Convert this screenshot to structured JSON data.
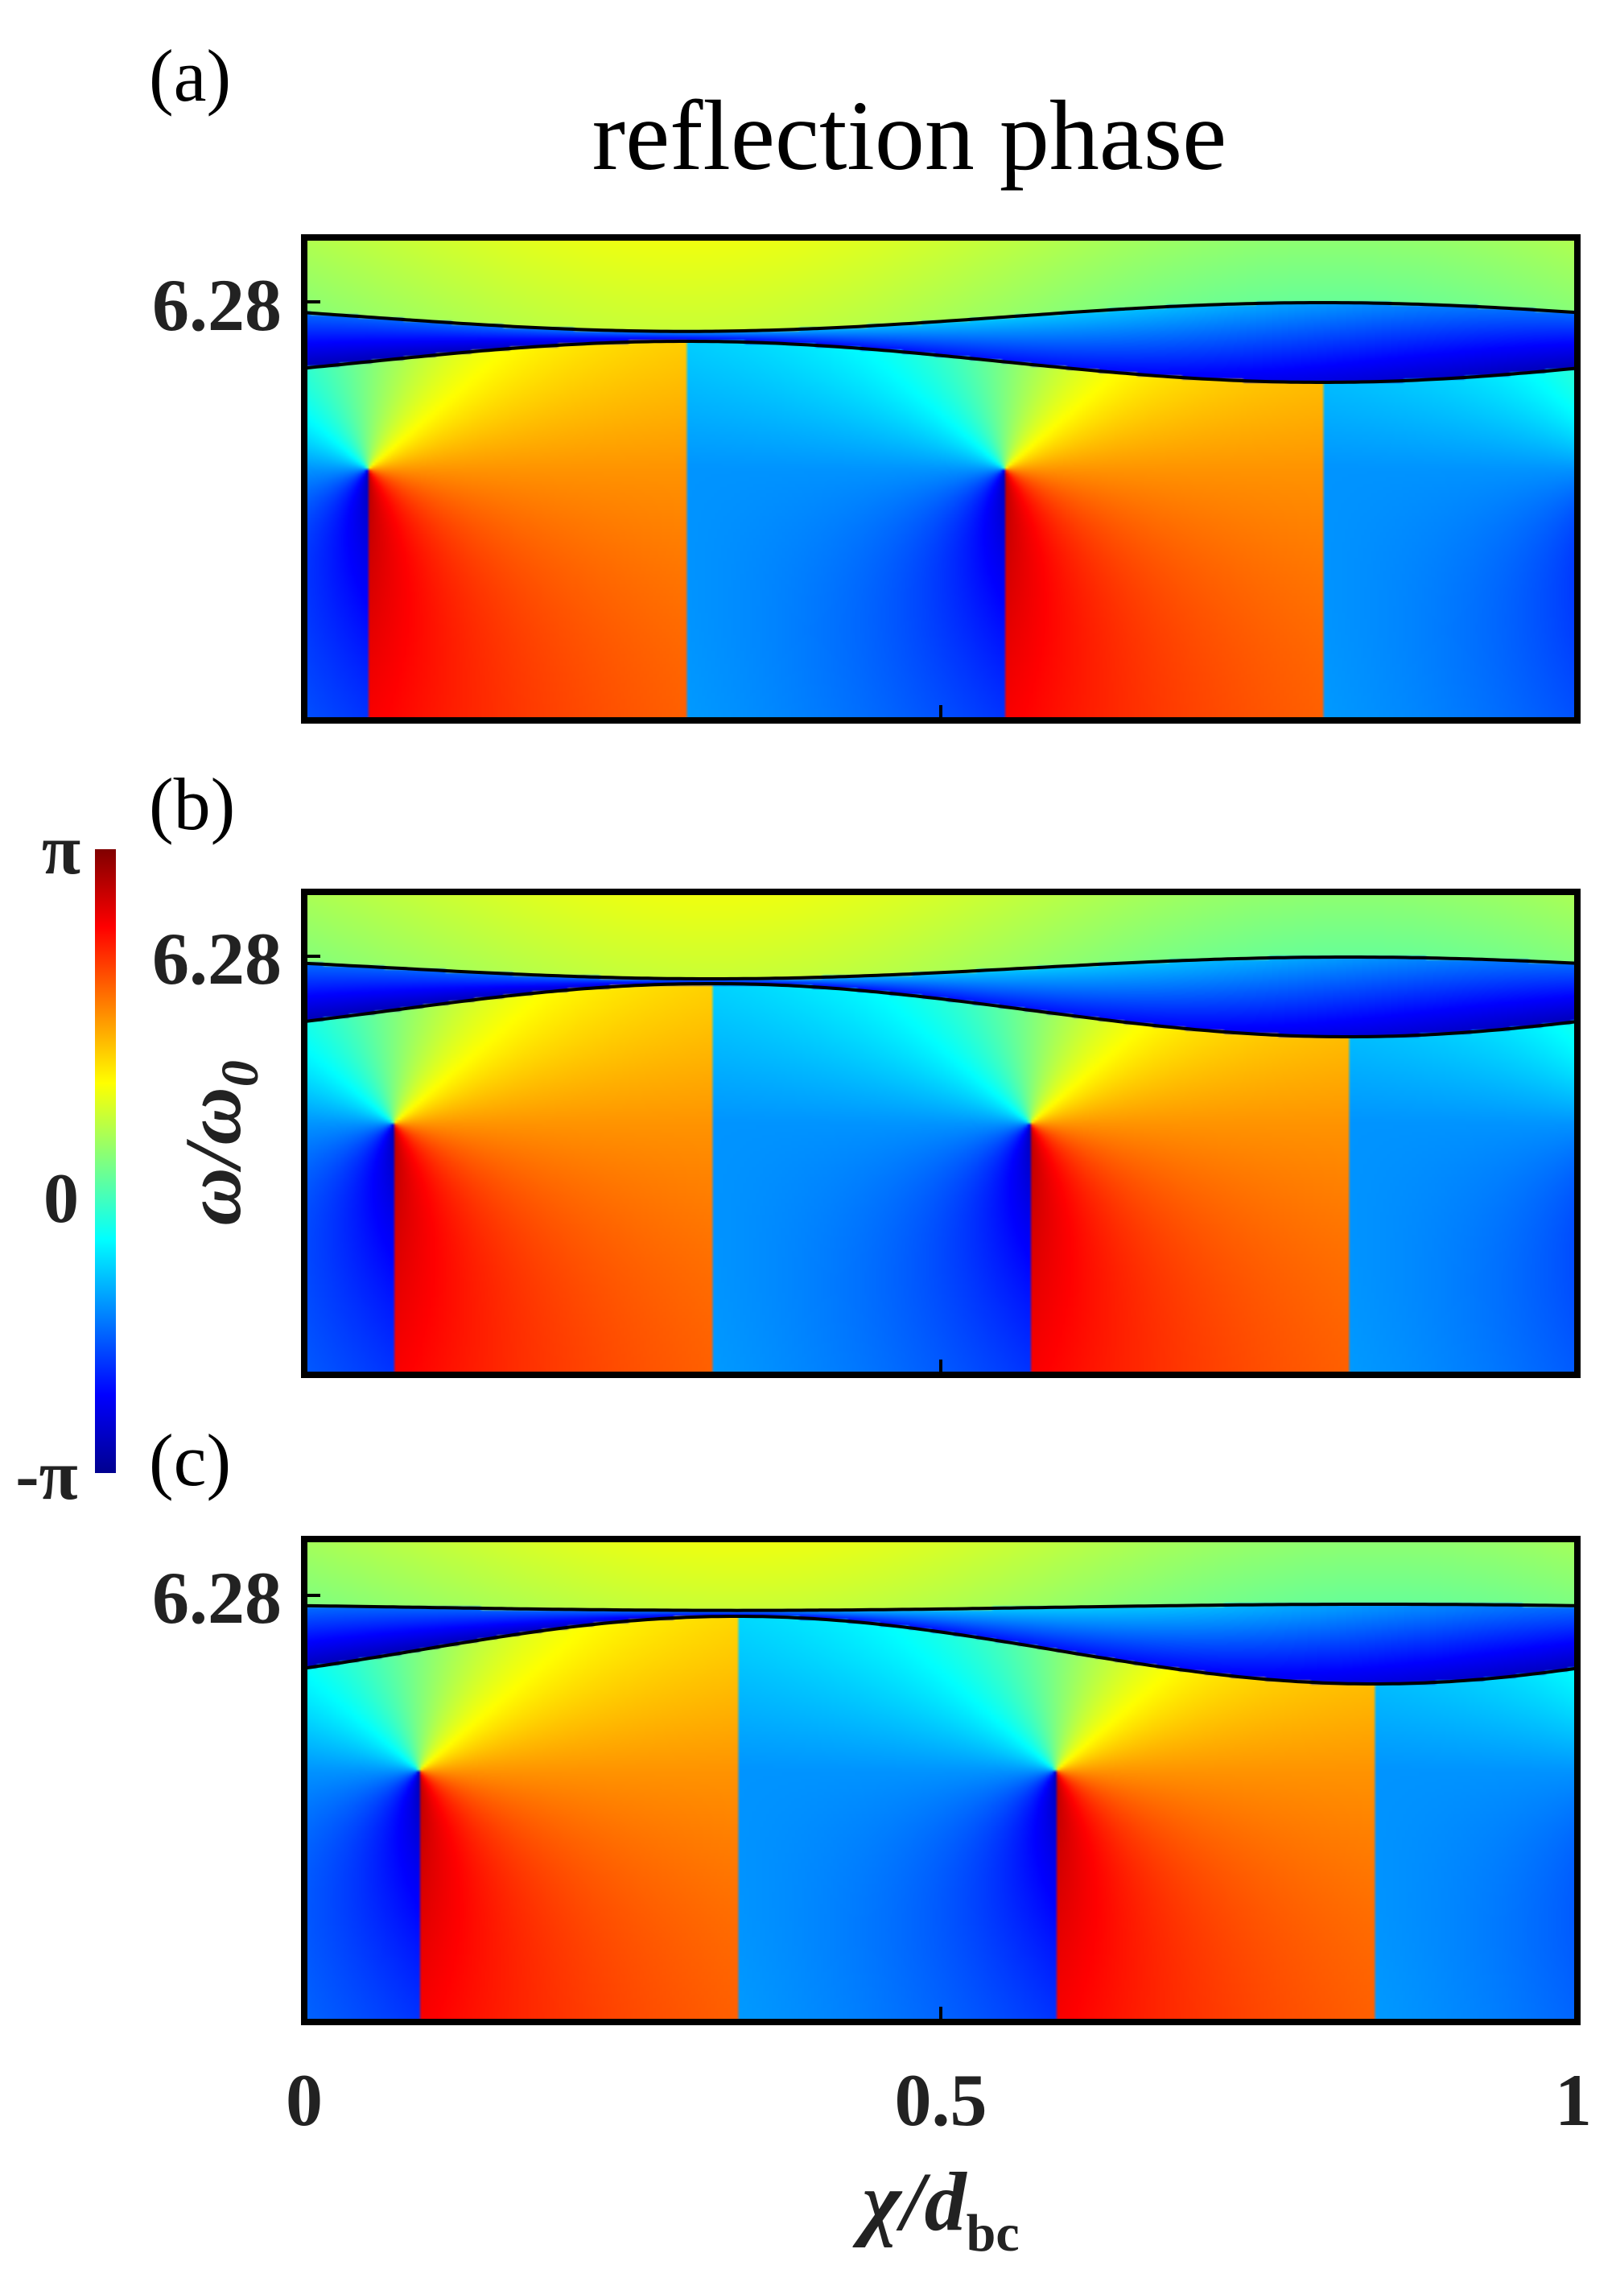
{
  "chart_data": {
    "type": "heatmap",
    "title": "reflection phase",
    "xlabel": "χ/d",
    "xlabel_sub": "bc",
    "ylabel": "ω/ω",
    "ylabel_sub": "0",
    "xlim": [
      0,
      1
    ],
    "x_ticks": [
      "0",
      "0.5",
      "1"
    ],
    "y_tick_value": 6.28,
    "y_tick_label": "6.28",
    "colorbar": {
      "min_label": "-π",
      "mid_label": "0",
      "max_label": "π",
      "colormap": "jet",
      "colors": [
        "#00008f",
        "#0000ff",
        "#00ffff",
        "#ffff00",
        "#ff0000",
        "#800000"
      ]
    },
    "panels": [
      {
        "label": "(a)",
        "singularities": [
          {
            "x": 0.05,
            "orientation": "positive"
          },
          {
            "x": 0.55,
            "orientation": "positive"
          }
        ],
        "band_contact_x": [
          0.3,
          0.8
        ],
        "degenerate": false
      },
      {
        "label": "(b)",
        "singularities": [
          {
            "x": 0.07,
            "orientation": "positive"
          },
          {
            "x": 0.57,
            "orientation": "positive"
          }
        ],
        "band_contact_x": [
          0.32,
          0.82
        ],
        "degenerate": true
      },
      {
        "label": "(c)",
        "singularities": [
          {
            "x": 0.09,
            "orientation": "positive"
          },
          {
            "x": 0.59,
            "orientation": "positive"
          }
        ],
        "band_contact_x": [
          0.34,
          0.84
        ],
        "degenerate": false
      }
    ]
  }
}
